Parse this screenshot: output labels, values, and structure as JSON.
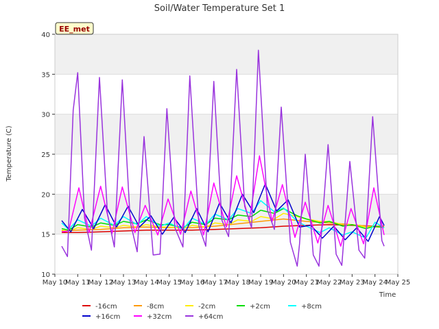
{
  "chart_data": {
    "type": "line",
    "title": "Soil/Water Temperature Set 1",
    "xlabel": "Time",
    "ylabel": "Temperature (C)",
    "xlim": [
      10,
      25
    ],
    "ylim": [
      10,
      40
    ],
    "x_ticks": [
      10,
      11,
      12,
      13,
      14,
      15,
      16,
      17,
      18,
      19,
      20,
      21,
      22,
      23,
      24,
      25
    ],
    "x_tick_labels": [
      "May 10",
      "May 11",
      "May 12",
      "May 13",
      "May 14",
      "May 15",
      "May 16",
      "May 17",
      "May 18",
      "May 19",
      "May 20",
      "May 21",
      "May 22",
      "May 23",
      "May 24",
      "May 25"
    ],
    "y_ticks": [
      10,
      15,
      20,
      25,
      30,
      35,
      40
    ],
    "y_tick_labels": [
      "10",
      "15",
      "20",
      "25",
      "30",
      "35",
      "40"
    ],
    "grid": true,
    "legend_position": "bottom",
    "annotation": "EE_met",
    "series": [
      {
        "name": "-16cm",
        "color": "#dd0000",
        "x": [
          10.3,
          11,
          12,
          13,
          14,
          15,
          16,
          17,
          18,
          19,
          20,
          21,
          22,
          23,
          24,
          24.4
        ],
        "y": [
          15.2,
          15.2,
          15.3,
          15.4,
          15.5,
          15.5,
          15.5,
          15.6,
          15.7,
          15.8,
          16.0,
          16.1,
          16.2,
          16.1,
          16.0,
          16.0
        ]
      },
      {
        "name": "-8cm",
        "color": "#ff9900",
        "x": [
          10.3,
          11,
          12,
          13,
          14,
          15,
          16,
          17,
          18,
          19,
          20,
          21,
          22,
          23,
          24,
          24.4
        ],
        "y": [
          15.4,
          15.5,
          15.6,
          15.8,
          15.9,
          15.8,
          15.8,
          16.0,
          16.3,
          16.6,
          16.9,
          16.6,
          16.4,
          16.2,
          15.9,
          15.9
        ]
      },
      {
        "name": "-2cm",
        "color": "#ffee00",
        "x": [
          10.3,
          10.6,
          11,
          11.6,
          12,
          12.6,
          13,
          13.6,
          14,
          14.6,
          15,
          15.6,
          16,
          16.6,
          17,
          17.6,
          18,
          18.6,
          19,
          19.6,
          20,
          20.6,
          21,
          21.6,
          22,
          22.6,
          23,
          23.6,
          24,
          24.4
        ],
        "y": [
          15.5,
          15.4,
          15.8,
          15.6,
          16.0,
          15.8,
          16.1,
          15.9,
          16.2,
          15.9,
          15.9,
          15.7,
          16.1,
          15.9,
          16.4,
          16.2,
          16.8,
          16.6,
          17.2,
          16.9,
          17.6,
          17.2,
          16.9,
          16.6,
          16.6,
          16.2,
          16.2,
          15.9,
          16.0,
          15.9
        ]
      },
      {
        "name": "+2cm",
        "color": "#00dd00",
        "x": [
          10.3,
          10.6,
          11,
          11.6,
          12,
          12.6,
          13,
          13.6,
          14,
          14.6,
          15,
          15.6,
          16,
          16.6,
          17,
          17.6,
          18,
          18.6,
          19,
          19.6,
          20,
          20.6,
          21,
          21.6,
          22,
          22.6,
          23,
          23.6,
          24,
          24.4
        ],
        "y": [
          15.7,
          15.5,
          16.2,
          15.9,
          16.4,
          16.1,
          16.6,
          16.3,
          16.8,
          16.2,
          16.2,
          15.8,
          16.5,
          16.2,
          17.0,
          16.8,
          17.4,
          17.2,
          18.0,
          17.6,
          18.2,
          17.3,
          16.9,
          16.4,
          16.6,
          16.0,
          16.2,
          15.7,
          16.0,
          15.8
        ]
      },
      {
        "name": "+8cm",
        "color": "#00ffff",
        "x": [
          10.3,
          10.6,
          11,
          11.6,
          12,
          12.6,
          13,
          13.6,
          14,
          14.6,
          15,
          15.6,
          16,
          16.6,
          17,
          17.6,
          18,
          18.6,
          19,
          19.6,
          20,
          20.6,
          21,
          21.6,
          22,
          22.6,
          23,
          23.6,
          24,
          24.4
        ],
        "y": [
          16.4,
          15.6,
          16.8,
          16.0,
          17.0,
          16.1,
          17.2,
          16.2,
          17.2,
          16.0,
          16.4,
          15.6,
          17.0,
          16.2,
          17.5,
          16.8,
          18.2,
          17.6,
          19.2,
          17.8,
          18.3,
          16.6,
          16.0,
          15.2,
          15.8,
          14.9,
          15.3,
          14.5,
          16.5,
          15.8
        ]
      },
      {
        "name": "+16cm",
        "color": "#0000cc",
        "x": [
          10.3,
          10.7,
          11.2,
          11.7,
          12.2,
          12.7,
          13.2,
          13.7,
          14.2,
          14.7,
          15.2,
          15.7,
          16.2,
          16.7,
          17.2,
          17.7,
          18.2,
          18.7,
          19.2,
          19.7,
          20.2,
          20.7,
          21.2,
          21.7,
          22.2,
          22.7,
          23.2,
          23.7,
          24.2,
          24.4
        ],
        "y": [
          16.7,
          15.3,
          18.1,
          15.7,
          18.7,
          15.9,
          18.5,
          15.9,
          17.3,
          15.0,
          17.1,
          15.2,
          18.2,
          15.3,
          18.9,
          16.4,
          20.0,
          17.7,
          21.3,
          17.9,
          19.3,
          15.9,
          16.1,
          14.5,
          16.0,
          14.3,
          15.8,
          14.1,
          17.2,
          16.1
        ]
      },
      {
        "name": "+32cm",
        "color": "#ff00ff",
        "x": [
          10.3,
          10.6,
          11.05,
          11.5,
          12.0,
          12.5,
          12.95,
          13.5,
          13.95,
          14.5,
          14.95,
          15.5,
          15.95,
          16.5,
          16.95,
          17.5,
          17.95,
          18.5,
          18.95,
          19.5,
          19.95,
          20.5,
          20.95,
          21.5,
          21.95,
          22.5,
          22.95,
          23.5,
          23.95,
          24.4
        ],
        "y": [
          15.3,
          15.4,
          20.8,
          15.2,
          21.0,
          15.1,
          20.9,
          15.2,
          18.6,
          14.9,
          19.4,
          15.0,
          20.4,
          14.9,
          21.4,
          15.9,
          22.3,
          16.7,
          24.8,
          16.6,
          21.2,
          14.6,
          19.0,
          13.9,
          18.6,
          13.5,
          18.2,
          13.8,
          20.8,
          14.9
        ]
      },
      {
        "name": "+64cm",
        "color": "#9933dd",
        "x": [
          10.3,
          10.55,
          10.8,
          11.0,
          11.3,
          11.6,
          11.95,
          12.3,
          12.6,
          12.95,
          13.3,
          13.6,
          13.9,
          14.3,
          14.6,
          14.9,
          15.25,
          15.6,
          15.9,
          16.3,
          16.6,
          16.95,
          17.3,
          17.6,
          17.95,
          18.3,
          18.6,
          18.9,
          19.3,
          19.6,
          19.9,
          20.3,
          20.6,
          20.7,
          20.95,
          21.3,
          21.55,
          21.95,
          22.3,
          22.55,
          22.9,
          23.3,
          23.55,
          23.9,
          24.3,
          24.4
        ],
        "y": [
          13.5,
          12.2,
          30.5,
          35.2,
          17.0,
          13.0,
          34.6,
          17.5,
          13.4,
          34.3,
          16.5,
          12.8,
          27.2,
          12.4,
          12.5,
          30.7,
          15.8,
          13.4,
          34.8,
          16.0,
          13.5,
          34.1,
          16.8,
          14.7,
          35.6,
          18.5,
          15.8,
          38.0,
          18.0,
          15.6,
          30.9,
          14.0,
          11.0,
          13.8,
          25.0,
          12.4,
          11.0,
          26.2,
          12.5,
          11.1,
          24.1,
          13.0,
          12.0,
          29.7,
          14.2,
          13.5
        ]
      }
    ]
  }
}
